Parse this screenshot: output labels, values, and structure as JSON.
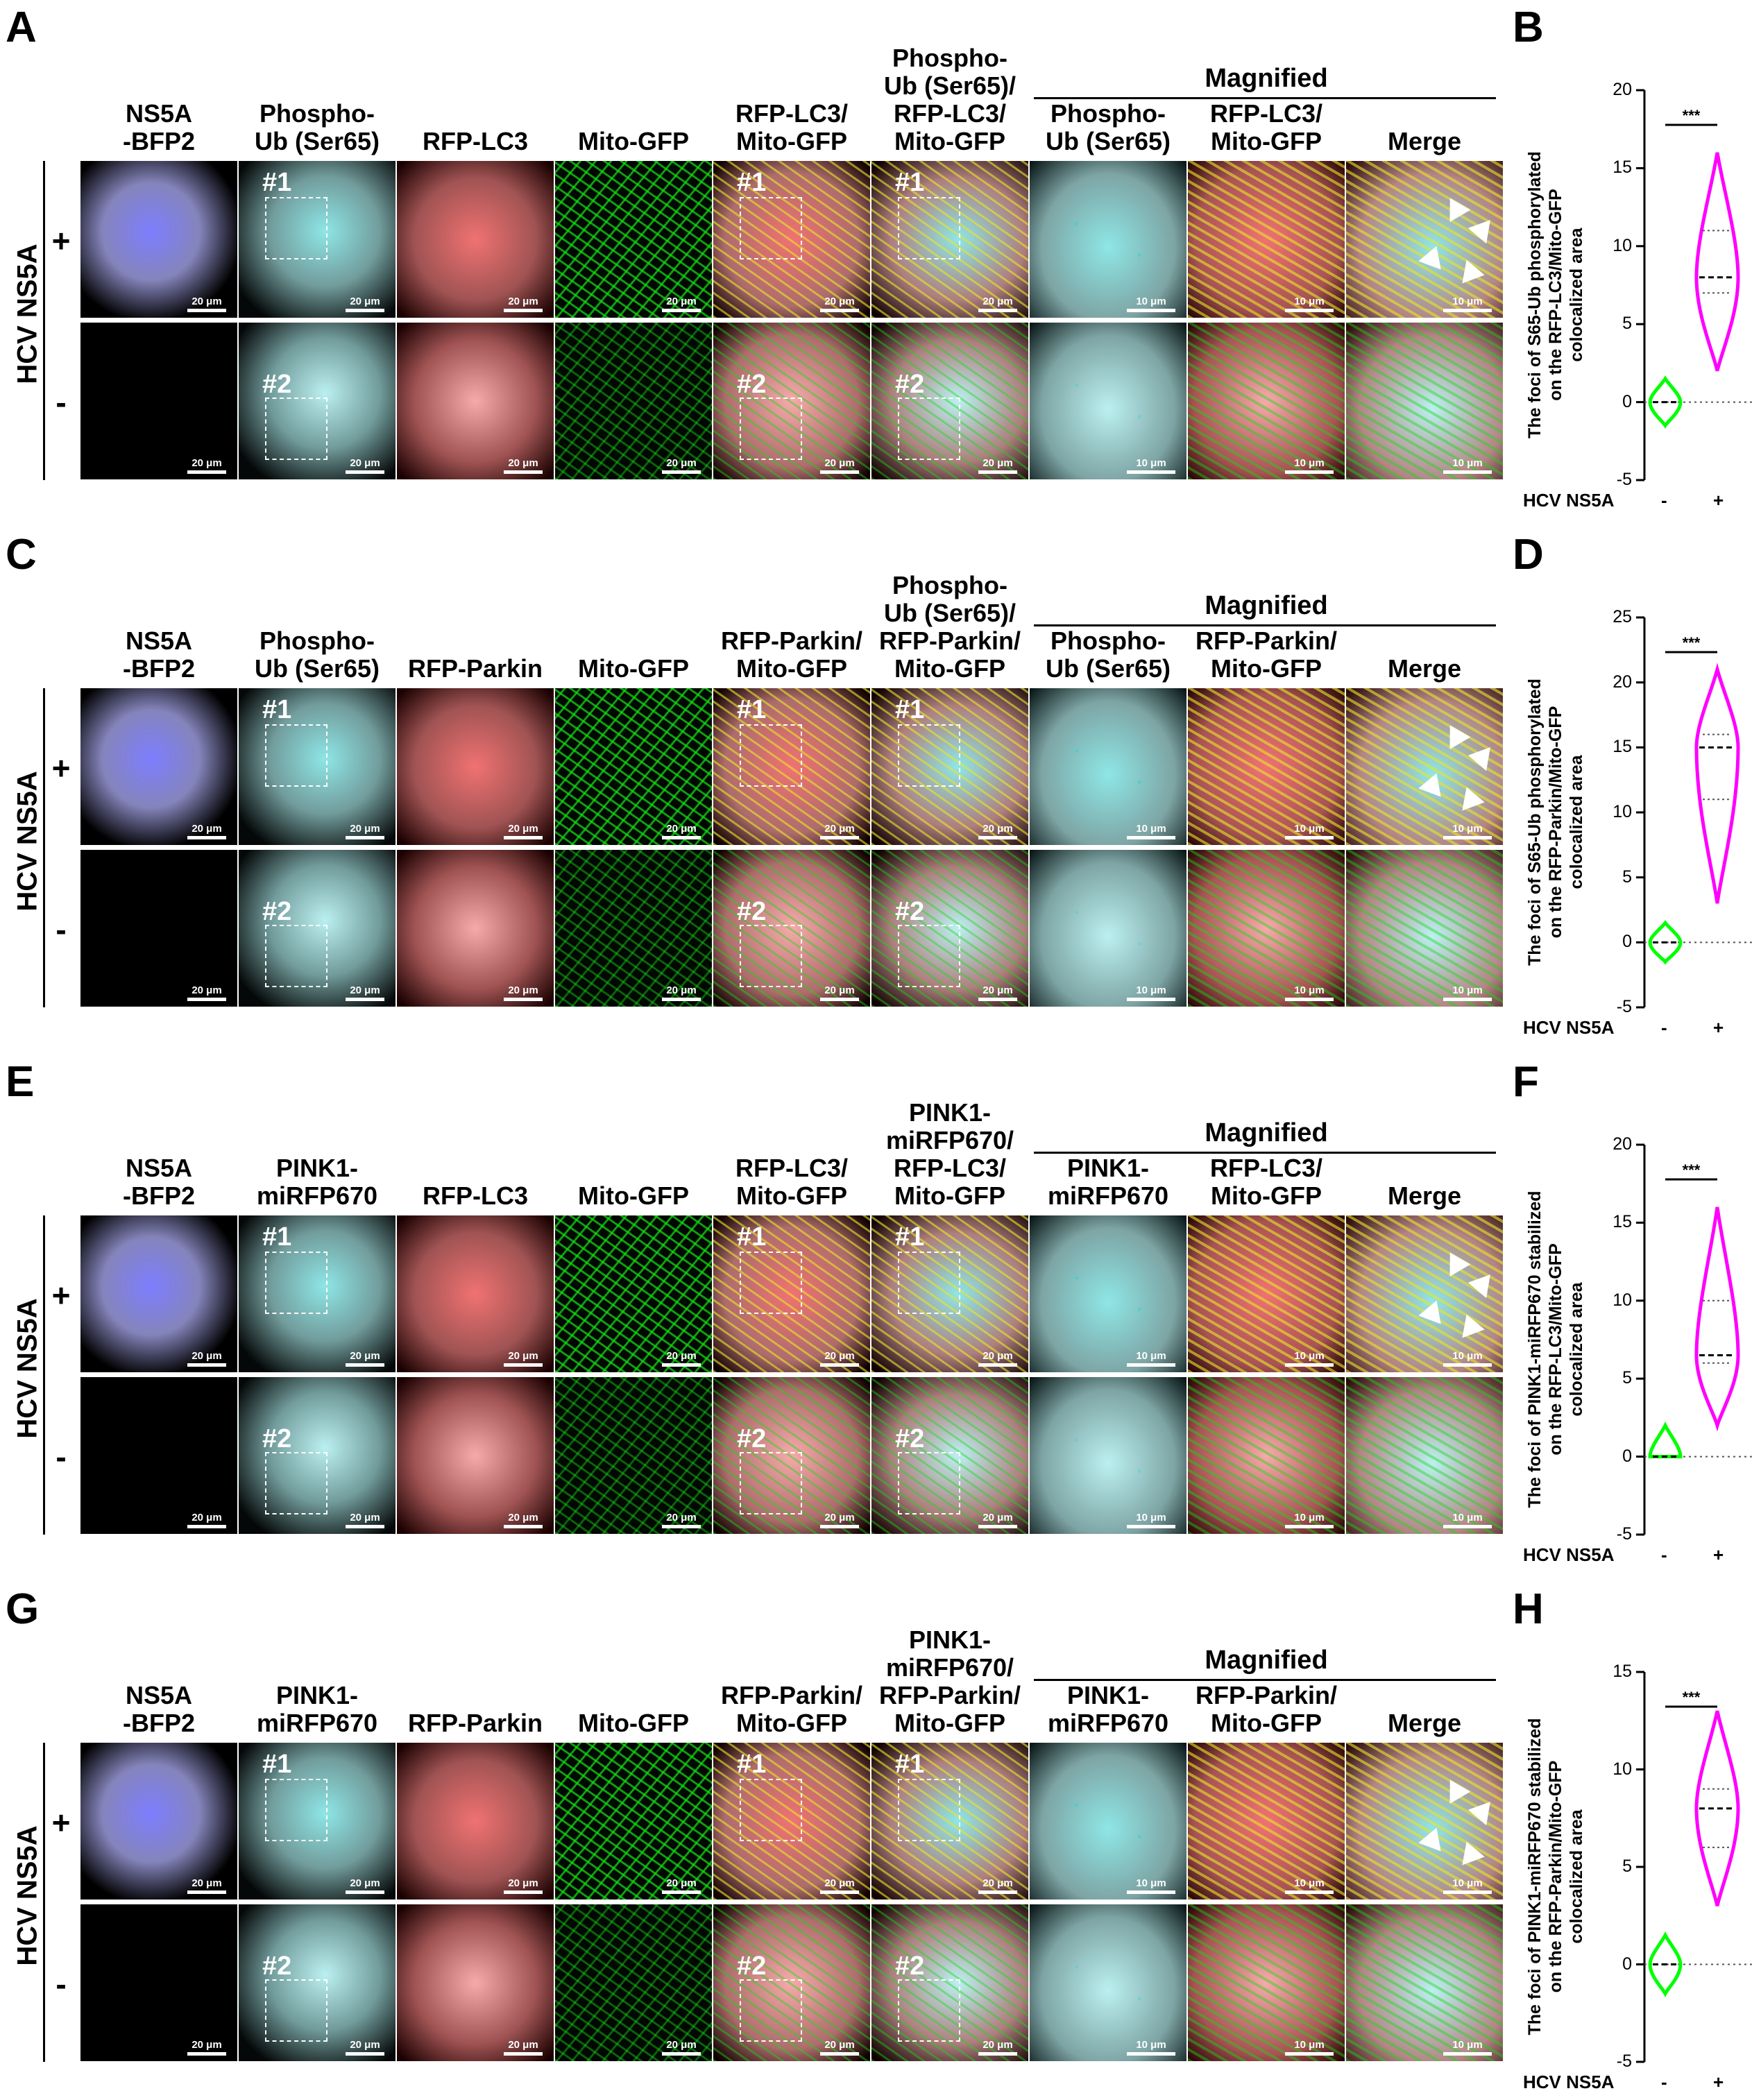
{
  "colors": {
    "blue": "#1a1aff",
    "cyan": "#3ad6d6",
    "red": "#e01010",
    "green": "#10d010",
    "yellow": "#e8e820",
    "violin_plus": "#ff00ff",
    "violin_minus": "#00ff00"
  },
  "magnified_title": "Magnified",
  "row_label": "HCV NS5A",
  "sign_plus": "+",
  "sign_minus": "-",
  "scale_20": "20 μm",
  "scale_10": "10 μm",
  "roi1": "#1",
  "roi2": "#2",
  "panels": [
    {
      "letter": "A",
      "plot_letter": "B",
      "headers": [
        [
          "NS5A",
          "-BFP2"
        ],
        [
          "Phospho-",
          "Ub (Ser65)"
        ],
        [
          "RFP-LC3"
        ],
        [
          "Mito-GFP"
        ],
        [
          "RFP-LC3/",
          "Mito-GFP"
        ],
        [
          "Phospho-",
          "Ub (Ser65)/",
          "RFP-LC3/",
          "Mito-GFP"
        ],
        [
          "Phospho-",
          "Ub (Ser65)"
        ],
        [
          "RFP-LC3/",
          "Mito-GFP"
        ],
        [
          "Merge"
        ]
      ]
    },
    {
      "letter": "C",
      "plot_letter": "D",
      "headers": [
        [
          "NS5A",
          "-BFP2"
        ],
        [
          "Phospho-",
          "Ub (Ser65)"
        ],
        [
          "RFP-Parkin"
        ],
        [
          "Mito-GFP"
        ],
        [
          "RFP-Parkin/",
          "Mito-GFP"
        ],
        [
          "Phospho-",
          "Ub (Ser65)/",
          "RFP-Parkin/",
          "Mito-GFP"
        ],
        [
          "Phospho-",
          "Ub (Ser65)"
        ],
        [
          "RFP-Parkin/",
          "Mito-GFP"
        ],
        [
          "Merge"
        ]
      ]
    },
    {
      "letter": "E",
      "plot_letter": "F",
      "headers": [
        [
          "NS5A",
          "-BFP2"
        ],
        [
          "PINK1-",
          "miRFP670"
        ],
        [
          "RFP-LC3"
        ],
        [
          "Mito-GFP"
        ],
        [
          "RFP-LC3/",
          "Mito-GFP"
        ],
        [
          "PINK1-",
          "miRFP670/",
          "RFP-LC3/",
          "Mito-GFP"
        ],
        [
          "PINK1-",
          "miRFP670"
        ],
        [
          "RFP-LC3/",
          "Mito-GFP"
        ],
        [
          "Merge"
        ]
      ]
    },
    {
      "letter": "G",
      "plot_letter": "H",
      "headers": [
        [
          "NS5A",
          "-BFP2"
        ],
        [
          "PINK1-",
          "miRFP670"
        ],
        [
          "RFP-Parkin"
        ],
        [
          "Mito-GFP"
        ],
        [
          "RFP-Parkin/",
          "Mito-GFP"
        ],
        [
          "PINK1-",
          "miRFP670/",
          "RFP-Parkin/",
          "Mito-GFP"
        ],
        [
          "PINK1-",
          "miRFP670"
        ],
        [
          "RFP-Parkin/",
          "Mito-GFP"
        ],
        [
          "Merge"
        ]
      ]
    }
  ],
  "chart_data": [
    {
      "type": "violin",
      "ylabel": [
        "The foci of  S65-Ub phosphorylated",
        "on the RFP-LC3/Mito-GFP",
        "colocalized area"
      ],
      "ylim": [
        -5,
        20
      ],
      "yticks": [
        -5,
        0,
        5,
        10,
        15,
        20
      ],
      "xlabel": "HCV NS5A",
      "categories": [
        "-",
        "+"
      ],
      "significance": "***",
      "series": [
        {
          "category": "-",
          "median": 0,
          "min": -1.5,
          "max": 1.5
        },
        {
          "category": "+",
          "median": 8,
          "min": 2,
          "max": 16,
          "q1": 7,
          "q3": 11
        }
      ]
    },
    {
      "type": "violin",
      "ylabel": [
        "The foci of  S65-Ub phosphorylated",
        "on the RFP-Parkin/Mito-GFP",
        "colocalized area"
      ],
      "ylim": [
        -5,
        25
      ],
      "yticks": [
        -5,
        0,
        5,
        10,
        15,
        20,
        25
      ],
      "xlabel": "HCV NS5A",
      "categories": [
        "-",
        "+"
      ],
      "significance": "***",
      "series": [
        {
          "category": "-",
          "median": 0,
          "min": -1.5,
          "max": 1.5
        },
        {
          "category": "+",
          "median": 15,
          "min": 3,
          "max": 21,
          "q1": 11,
          "q3": 16
        }
      ]
    },
    {
      "type": "violin",
      "ylabel": [
        "The foci of PINK1-miRFP670 stabilized",
        "on the RFP-LC3/Mito-GFP",
        "colocalized area"
      ],
      "ylim": [
        -5,
        20
      ],
      "yticks": [
        -5,
        0,
        5,
        10,
        15,
        20
      ],
      "xlabel": "HCV NS5A",
      "categories": [
        "-",
        "+"
      ],
      "significance": "***",
      "series": [
        {
          "category": "-",
          "median": 0,
          "min": 0,
          "max": 2
        },
        {
          "category": "+",
          "median": 6.5,
          "min": 2,
          "max": 16,
          "q1": 6,
          "q3": 10
        }
      ]
    },
    {
      "type": "violin",
      "ylabel": [
        "The foci of PINK1-miRFP670 stabilized",
        "on the RFP-Parkin/Mito-GFP",
        "colocalized area"
      ],
      "ylim": [
        -5,
        15
      ],
      "yticks": [
        -5,
        0,
        5,
        10,
        15
      ],
      "xlabel": "HCV NS5A",
      "categories": [
        "-",
        "+"
      ],
      "significance": "***",
      "series": [
        {
          "category": "-",
          "median": 0,
          "min": -1.5,
          "max": 1.5
        },
        {
          "category": "+",
          "median": 8,
          "min": 3,
          "max": 13,
          "q1": 6,
          "q3": 9
        }
      ]
    }
  ]
}
